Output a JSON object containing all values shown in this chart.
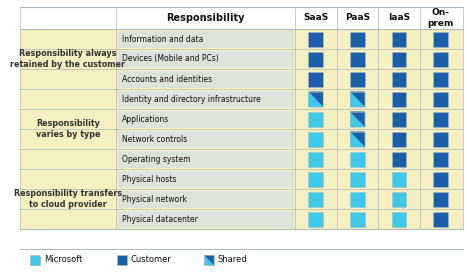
{
  "header_cols": [
    "Responsibility",
    "SaaS",
    "PaaS",
    "IaaS",
    "On-\nprem"
  ],
  "row_groups": [
    {
      "label": "Responsibility always\nretained by the customer",
      "bg": "#f5f0c0",
      "rows": [
        "Information and data",
        "Devices (Mobile and PCs)",
        "Accounts and identities"
      ]
    },
    {
      "label": "Responsibility\nvaries by type",
      "bg": "#f5f0c0",
      "rows": [
        "Identity and directory infrastructure",
        "Applications",
        "Network controls",
        "Operating system"
      ]
    },
    {
      "label": "Responsibility transfers\nto cloud provider",
      "bg": "#f5f0c0",
      "rows": [
        "Physical hosts",
        "Physical network",
        "Physical datacenter"
      ]
    }
  ],
  "cell_types": {
    "Information and data": [
      "customer",
      "customer",
      "customer",
      "customer"
    ],
    "Devices (Mobile and PCs)": [
      "customer",
      "customer",
      "customer",
      "customer"
    ],
    "Accounts and identities": [
      "customer",
      "customer",
      "customer",
      "customer"
    ],
    "Identity and directory infrastructure": [
      "shared",
      "shared",
      "customer",
      "customer"
    ],
    "Applications": [
      "microsoft",
      "shared",
      "customer",
      "customer"
    ],
    "Network controls": [
      "microsoft",
      "shared",
      "customer",
      "customer"
    ],
    "Operating system": [
      "microsoft",
      "microsoft",
      "customer",
      "customer"
    ],
    "Physical hosts": [
      "microsoft",
      "microsoft",
      "microsoft",
      "customer"
    ],
    "Physical network": [
      "microsoft",
      "microsoft",
      "microsoft",
      "customer"
    ],
    "Physical datacenter": [
      "microsoft",
      "microsoft",
      "microsoft",
      "customer"
    ]
  },
  "color_microsoft": "#3ec8ea",
  "color_customer": "#1a5faa",
  "color_row_bg": "#c8d8ea",
  "color_group_bg": "#f5f0c0",
  "color_white": "#ffffff",
  "color_border": "#b0b8c0",
  "color_header_border": "#888888"
}
